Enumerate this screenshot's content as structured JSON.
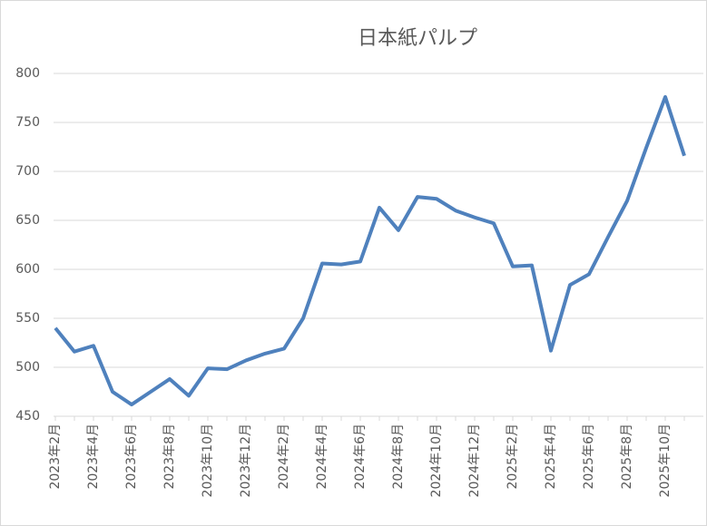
{
  "chart_data": {
    "type": "line",
    "title": "日本紙パルプ",
    "categories": [
      "2023年2月",
      null,
      "2023年4月",
      null,
      "2023年6月",
      null,
      "2023年8月",
      null,
      "2023年10月",
      null,
      "2023年12月",
      null,
      "2024年2月",
      null,
      "2024年4月",
      null,
      "2024年6月",
      null,
      "2024年8月",
      null,
      "2024年10月",
      null,
      "2024年12月",
      null,
      "2025年2月",
      null,
      "2025年4月",
      null,
      "2025年6月",
      null,
      "2025年8月",
      null,
      "2025年10月",
      null
    ],
    "values": [
      540,
      516,
      522,
      475,
      462,
      475,
      488,
      471,
      499,
      498,
      507,
      514,
      519,
      550,
      606,
      605,
      608,
      663,
      640,
      674,
      672,
      660,
      653,
      647,
      603,
      604,
      517,
      584,
      595,
      633,
      670,
      724,
      776,
      716
    ],
    "color": "#4f81bd",
    "ylim": [
      450,
      800
    ],
    "yticks": [
      450,
      500,
      550,
      600,
      650,
      700,
      750,
      800
    ],
    "grid": true
  }
}
